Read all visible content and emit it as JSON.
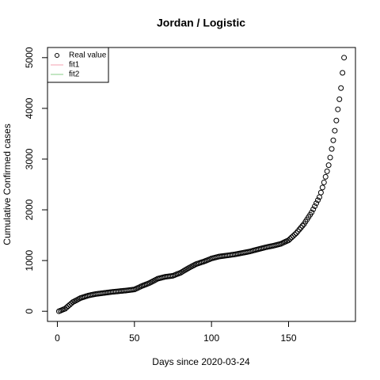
{
  "chart_data": {
    "type": "scatter",
    "title": "Jordan / Logistic",
    "x_label": "Days since 2020-03-24",
    "y_label": "Cumulative Confirmed cases",
    "xlim": [
      -6.4,
      193.4
    ],
    "xticks": [
      0,
      50,
      100,
      150
    ],
    "ylim": [
      -200,
      5200
    ],
    "yticks": [
      0,
      1000,
      2000,
      3000,
      4000,
      5000
    ],
    "legend_position": "topleft",
    "series": [
      {
        "name": "Real value",
        "marker": "circle",
        "color": "#000000",
        "x": [
          1,
          2,
          3,
          4,
          5,
          6,
          7,
          8,
          9,
          10,
          11,
          12,
          13,
          14,
          15,
          16,
          17,
          18,
          19,
          20,
          21,
          22,
          23,
          24,
          25,
          26,
          27,
          28,
          29,
          30,
          31,
          32,
          33,
          34,
          35,
          36,
          37,
          38,
          39,
          40,
          41,
          42,
          43,
          44,
          45,
          46,
          47,
          48,
          49,
          50,
          51,
          52,
          53,
          54,
          55,
          56,
          57,
          58,
          59,
          60,
          61,
          62,
          63,
          64,
          65,
          66,
          67,
          68,
          69,
          70,
          71,
          72,
          73,
          74,
          75,
          76,
          77,
          78,
          79,
          80,
          81,
          82,
          83,
          84,
          85,
          86,
          87,
          88,
          89,
          90,
          91,
          92,
          93,
          94,
          95,
          96,
          97,
          98,
          99,
          100,
          101,
          102,
          103,
          104,
          105,
          106,
          107,
          108,
          109,
          110,
          111,
          112,
          113,
          114,
          115,
          116,
          117,
          118,
          119,
          120,
          121,
          122,
          123,
          124,
          125,
          126,
          127,
          128,
          129,
          130,
          131,
          132,
          133,
          134,
          135,
          136,
          137,
          138,
          139,
          140,
          141,
          142,
          143,
          144,
          145,
          146,
          147,
          148,
          149,
          150,
          151,
          152,
          153,
          154,
          155,
          156,
          157,
          158,
          159,
          160,
          161,
          162,
          163,
          164,
          165,
          166,
          167,
          168,
          169,
          170,
          171,
          172,
          173,
          174,
          175,
          176,
          177,
          178,
          179,
          180,
          181,
          182,
          183,
          184,
          185,
          186
        ],
        "values": [
          0,
          12,
          25,
          38,
          50,
          76,
          102,
          128,
          154,
          180,
          196,
          212,
          228,
          244,
          260,
          270,
          280,
          290,
          300,
          310,
          316,
          322,
          328,
          334,
          340,
          344,
          348,
          352,
          356,
          360,
          364,
          368,
          372,
          376,
          380,
          383,
          386,
          389,
          392,
          395,
          398,
          401,
          404,
          407,
          410,
          414,
          418,
          422,
          426,
          430,
          444,
          458,
          472,
          486,
          500,
          512,
          524,
          536,
          548,
          560,
          576,
          592,
          608,
          624,
          640,
          648,
          656,
          664,
          672,
          680,
          684,
          688,
          692,
          696,
          700,
          712,
          724,
          736,
          748,
          760,
          778,
          796,
          814,
          832,
          850,
          866,
          882,
          898,
          914,
          930,
          940,
          950,
          960,
          970,
          980,
          992,
          1004,
          1016,
          1028,
          1040,
          1048,
          1056,
          1064,
          1072,
          1080,
          1084,
          1088,
          1092,
          1096,
          1100,
          1104,
          1108,
          1112,
          1116,
          1120,
          1126,
          1132,
          1138,
          1144,
          1150,
          1156,
          1162,
          1168,
          1174,
          1180,
          1188,
          1196,
          1204,
          1212,
          1220,
          1228,
          1236,
          1244,
          1252,
          1260,
          1266,
          1272,
          1278,
          1284,
          1290,
          1298,
          1306,
          1314,
          1322,
          1330,
          1344,
          1358,
          1372,
          1386,
          1400,
          1428,
          1456,
          1484,
          1512,
          1540,
          1576,
          1612,
          1648,
          1684,
          1720,
          1766,
          1812,
          1858,
          1904,
          1950,
          2010,
          2070,
          2130,
          2190,
          2250,
          2340,
          2440,
          2540,
          2650,
          2760,
          2880,
          3030,
          3200,
          3370,
          3560,
          3760,
          3980,
          4180,
          4400,
          4700,
          5000
        ]
      },
      {
        "name": "fit1",
        "marker": "line",
        "color": "#f4a0b0"
      },
      {
        "name": "fit2",
        "marker": "line",
        "color": "#88cc88"
      }
    ]
  }
}
